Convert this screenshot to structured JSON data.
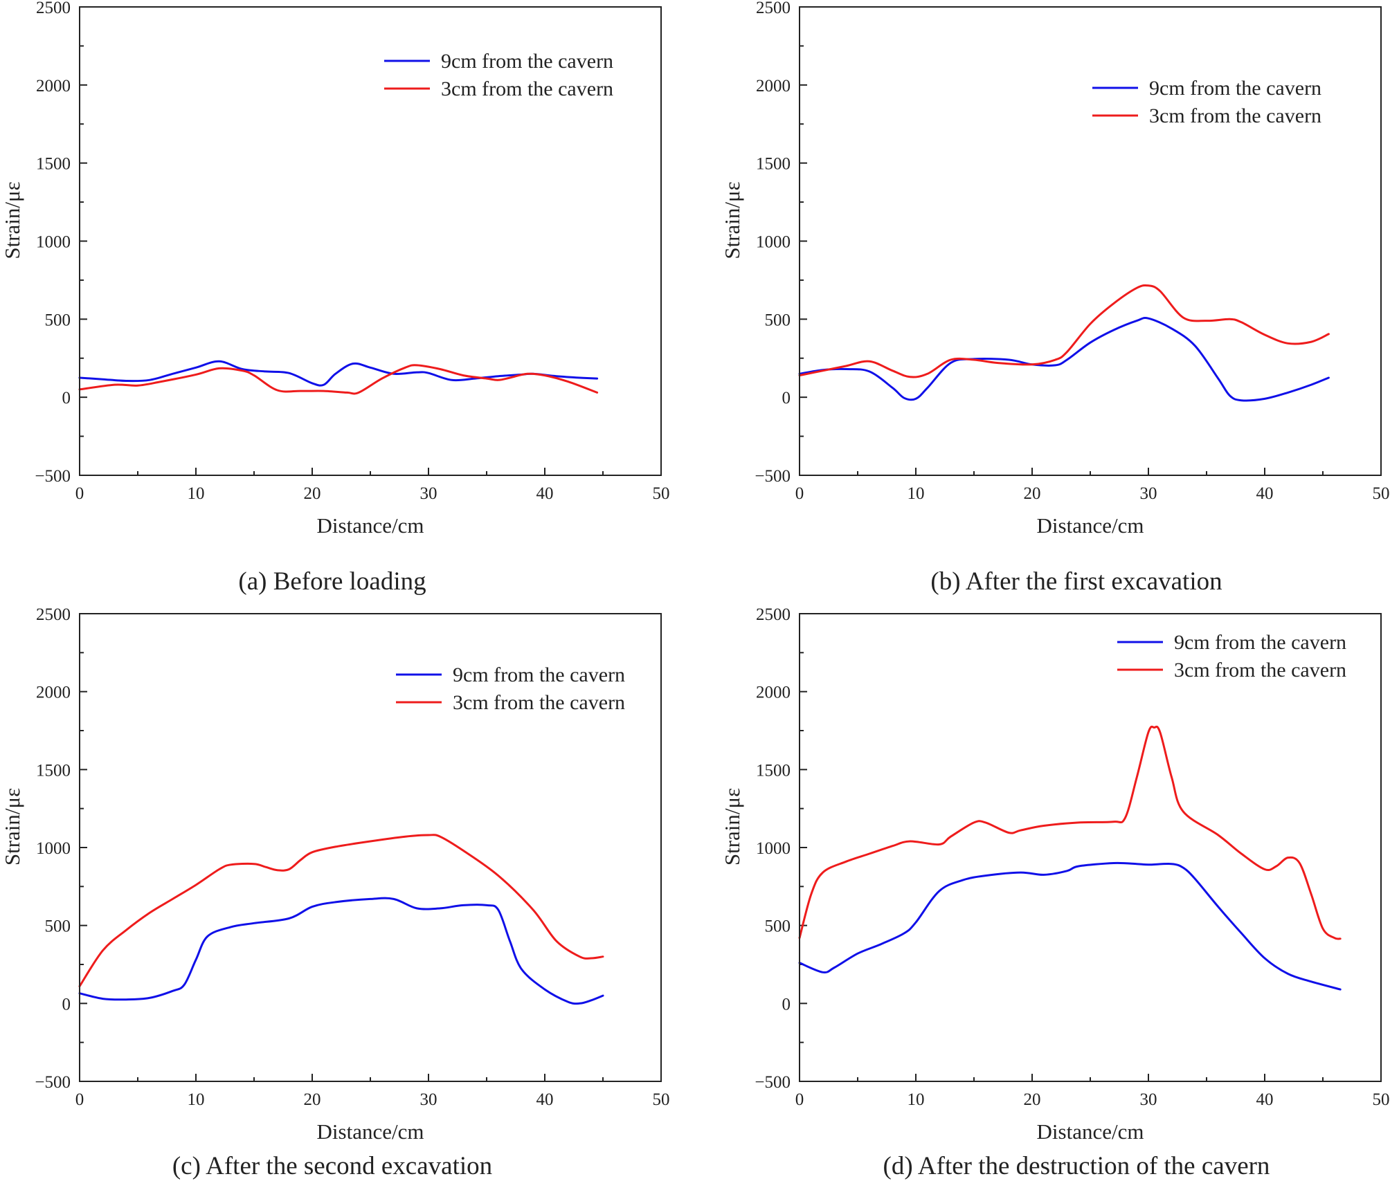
{
  "colors": {
    "series_blue": "#1010e8",
    "series_red": "#ee1c1c"
  },
  "chart_data": [
    {
      "type": "line",
      "caption": "(a) Before loading",
      "xlabel": "Distance/cm",
      "ylabel": "Strain/με",
      "xlim": [
        0,
        50
      ],
      "ylim": [
        -500,
        2500
      ],
      "xticks": [
        0,
        10,
        20,
        30,
        40,
        50
      ],
      "yticks": [
        -500,
        0,
        500,
        1000,
        1500,
        2000,
        2500
      ],
      "grid": false,
      "legend": "top-right",
      "series": [
        {
          "name": "9cm from the cavern",
          "color": "#1010e8",
          "points": [
            [
              0,
              125
            ],
            [
              2,
              115
            ],
            [
              4,
              105
            ],
            [
              6,
              110
            ],
            [
              8,
              150
            ],
            [
              10,
              190
            ],
            [
              12,
              230
            ],
            [
              14,
              180
            ],
            [
              16,
              165
            ],
            [
              18,
              155
            ],
            [
              20,
              90
            ],
            [
              21,
              80
            ],
            [
              22,
              150
            ],
            [
              23.5,
              215
            ],
            [
              25,
              190
            ],
            [
              27,
              150
            ],
            [
              29,
              160
            ],
            [
              30,
              155
            ],
            [
              32,
              110
            ],
            [
              34,
              120
            ],
            [
              36,
              135
            ],
            [
              38,
              145
            ],
            [
              39,
              150
            ],
            [
              41,
              135
            ],
            [
              43,
              125
            ],
            [
              44.5,
              120
            ]
          ]
        },
        {
          "name": "3cm from the cavern",
          "color": "#ee1c1c",
          "points": [
            [
              0,
              50
            ],
            [
              3,
              80
            ],
            [
              5,
              75
            ],
            [
              7,
              100
            ],
            [
              10,
              145
            ],
            [
              12,
              185
            ],
            [
              14,
              170
            ],
            [
              15,
              140
            ],
            [
              17,
              45
            ],
            [
              19,
              40
            ],
            [
              21,
              40
            ],
            [
              23,
              30
            ],
            [
              24,
              30
            ],
            [
              26,
              120
            ],
            [
              28,
              190
            ],
            [
              29,
              205
            ],
            [
              31,
              180
            ],
            [
              33,
              140
            ],
            [
              35,
              120
            ],
            [
              36,
              110
            ],
            [
              37,
              125
            ],
            [
              38.5,
              150
            ],
            [
              40,
              140
            ],
            [
              42,
              100
            ],
            [
              44.5,
              30
            ]
          ]
        }
      ]
    },
    {
      "type": "line",
      "caption": "(b) After the first excavation",
      "xlabel": "Distance/cm",
      "ylabel": "Strain/με",
      "xlim": [
        0,
        50
      ],
      "ylim": [
        -500,
        2500
      ],
      "xticks": [
        0,
        10,
        20,
        30,
        40,
        50
      ],
      "yticks": [
        -500,
        0,
        500,
        1000,
        1500,
        2000,
        2500
      ],
      "grid": false,
      "legend": "top-right",
      "series": [
        {
          "name": "9cm from the cavern",
          "color": "#1010e8",
          "points": [
            [
              0,
              150
            ],
            [
              2,
              175
            ],
            [
              4,
              180
            ],
            [
              6,
              165
            ],
            [
              8,
              60
            ],
            [
              9,
              -5
            ],
            [
              10,
              -10
            ],
            [
              11,
              60
            ],
            [
              13,
              220
            ],
            [
              15,
              245
            ],
            [
              18,
              240
            ],
            [
              20,
              210
            ],
            [
              22,
              205
            ],
            [
              23,
              240
            ],
            [
              25,
              350
            ],
            [
              27,
              430
            ],
            [
              29,
              490
            ],
            [
              30,
              505
            ],
            [
              32,
              440
            ],
            [
              34,
              330
            ],
            [
              36,
              120
            ],
            [
              37,
              10
            ],
            [
              38,
              -20
            ],
            [
              40,
              -10
            ],
            [
              42,
              30
            ],
            [
              44,
              80
            ],
            [
              45.5,
              125
            ]
          ]
        },
        {
          "name": "3cm from the cavern",
          "color": "#ee1c1c",
          "points": [
            [
              0,
              140
            ],
            [
              2,
              170
            ],
            [
              4,
              200
            ],
            [
              6,
              230
            ],
            [
              8,
              170
            ],
            [
              9.5,
              130
            ],
            [
              11,
              150
            ],
            [
              13,
              240
            ],
            [
              15,
              240
            ],
            [
              17,
              220
            ],
            [
              20,
              210
            ],
            [
              22,
              240
            ],
            [
              23,
              290
            ],
            [
              25,
              470
            ],
            [
              27,
              600
            ],
            [
              29,
              700
            ],
            [
              30,
              715
            ],
            [
              31,
              680
            ],
            [
              33,
              510
            ],
            [
              35,
              490
            ],
            [
              37,
              500
            ],
            [
              38,
              480
            ],
            [
              40,
              400
            ],
            [
              42,
              345
            ],
            [
              44,
              355
            ],
            [
              45.5,
              405
            ]
          ]
        }
      ]
    },
    {
      "type": "line",
      "caption": "(c) After the second excavation",
      "xlabel": "Distance/cm",
      "ylabel": "Strain/με",
      "xlim": [
        0,
        50
      ],
      "ylim": [
        -500,
        2500
      ],
      "xticks": [
        0,
        10,
        20,
        30,
        40,
        50
      ],
      "yticks": [
        -500,
        0,
        500,
        1000,
        1500,
        2000,
        2500
      ],
      "grid": false,
      "legend": "top-right",
      "series": [
        {
          "name": "9cm from the cavern",
          "color": "#1010e8",
          "points": [
            [
              0,
              65
            ],
            [
              2,
              30
            ],
            [
              4,
              25
            ],
            [
              6,
              35
            ],
            [
              8,
              80
            ],
            [
              9,
              120
            ],
            [
              10,
              280
            ],
            [
              11,
              430
            ],
            [
              13,
              490
            ],
            [
              15,
              515
            ],
            [
              18,
              545
            ],
            [
              20,
              620
            ],
            [
              22,
              650
            ],
            [
              25,
              670
            ],
            [
              27,
              670
            ],
            [
              29,
              610
            ],
            [
              31,
              610
            ],
            [
              33,
              630
            ],
            [
              35,
              630
            ],
            [
              36,
              600
            ],
            [
              37,
              400
            ],
            [
              38,
              220
            ],
            [
              40,
              90
            ],
            [
              42,
              10
            ],
            [
              43,
              0
            ],
            [
              44,
              20
            ],
            [
              45,
              50
            ]
          ]
        },
        {
          "name": "3cm from the cavern",
          "color": "#ee1c1c",
          "points": [
            [
              0,
              110
            ],
            [
              2,
              340
            ],
            [
              4,
              470
            ],
            [
              6,
              580
            ],
            [
              8,
              670
            ],
            [
              10,
              760
            ],
            [
              12,
              860
            ],
            [
              13,
              890
            ],
            [
              15,
              895
            ],
            [
              16,
              875
            ],
            [
              17,
              855
            ],
            [
              18,
              860
            ],
            [
              19,
              920
            ],
            [
              20,
              970
            ],
            [
              22,
              1005
            ],
            [
              25,
              1040
            ],
            [
              28,
              1070
            ],
            [
              30,
              1080
            ],
            [
              31,
              1070
            ],
            [
              33,
              980
            ],
            [
              36,
              820
            ],
            [
              39,
              600
            ],
            [
              41,
              400
            ],
            [
              43,
              300
            ],
            [
              44,
              290
            ],
            [
              45,
              300
            ]
          ]
        }
      ]
    },
    {
      "type": "line",
      "caption": "(d) After the destruction of the cavern",
      "xlabel": "Distance/cm",
      "ylabel": "Strain/με",
      "xlim": [
        0,
        50
      ],
      "ylim": [
        -500,
        2500
      ],
      "xticks": [
        0,
        10,
        20,
        30,
        40,
        50
      ],
      "yticks": [
        -500,
        0,
        500,
        1000,
        1500,
        2000,
        2500
      ],
      "grid": false,
      "legend": "top-right",
      "series": [
        {
          "name": "9cm from the cavern",
          "color": "#1010e8",
          "points": [
            [
              0,
              260
            ],
            [
              2,
              200
            ],
            [
              3,
              230
            ],
            [
              5,
              320
            ],
            [
              7,
              380
            ],
            [
              9,
              450
            ],
            [
              10,
              520
            ],
            [
              12,
              720
            ],
            [
              14,
              790
            ],
            [
              16,
              820
            ],
            [
              19,
              840
            ],
            [
              21,
              825
            ],
            [
              23,
              850
            ],
            [
              24,
              880
            ],
            [
              27,
              900
            ],
            [
              29,
              895
            ],
            [
              30,
              890
            ],
            [
              32,
              895
            ],
            [
              33,
              870
            ],
            [
              34,
              800
            ],
            [
              36,
              620
            ],
            [
              38,
              450
            ],
            [
              40,
              290
            ],
            [
              42,
              190
            ],
            [
              44,
              140
            ],
            [
              46.5,
              90
            ]
          ]
        },
        {
          "name": "3cm from the cavern",
          "color": "#ee1c1c",
          "points": [
            [
              0,
              420
            ],
            [
              1,
              700
            ],
            [
              2,
              840
            ],
            [
              4,
              910
            ],
            [
              6,
              960
            ],
            [
              8,
              1010
            ],
            [
              9.5,
              1040
            ],
            [
              12,
              1020
            ],
            [
              13,
              1070
            ],
            [
              15,
              1160
            ],
            [
              16,
              1160
            ],
            [
              18,
              1095
            ],
            [
              19,
              1110
            ],
            [
              21,
              1140
            ],
            [
              24,
              1160
            ],
            [
              27,
              1165
            ],
            [
              28,
              1190
            ],
            [
              29,
              1450
            ],
            [
              30,
              1740
            ],
            [
              30.5,
              1770
            ],
            [
              31,
              1740
            ],
            [
              32,
              1450
            ],
            [
              33,
              1230
            ],
            [
              36,
              1080
            ],
            [
              38,
              960
            ],
            [
              40,
              860
            ],
            [
              41,
              880
            ],
            [
              42,
              935
            ],
            [
              43,
              900
            ],
            [
              44,
              700
            ],
            [
              45,
              480
            ],
            [
              46,
              420
            ],
            [
              46.5,
              415
            ]
          ]
        }
      ]
    }
  ]
}
